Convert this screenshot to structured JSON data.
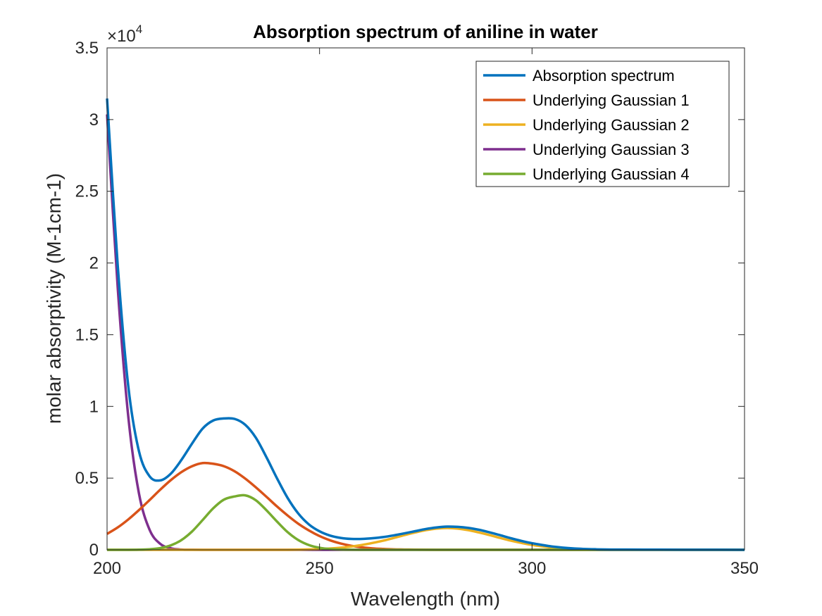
{
  "chart_data": {
    "type": "line",
    "title": "Absorption spectrum of aniline in water",
    "xlabel": "Wavelength (nm)",
    "ylabel": "molar absorptivity (M-1cm-1)",
    "xlim": [
      200,
      350
    ],
    "ylim": [
      0,
      35000
    ],
    "y_exponent_label": "×10",
    "y_exponent_power": "4",
    "x_ticks": [
      200,
      250,
      300,
      350
    ],
    "x_tick_labels": [
      "200",
      "250",
      "300",
      "350"
    ],
    "y_ticks": [
      0,
      5000,
      10000,
      15000,
      20000,
      25000,
      30000,
      35000
    ],
    "y_tick_labels": [
      "0",
      "0.5",
      "1",
      "1.5",
      "2",
      "2.5",
      "3",
      "3.5"
    ],
    "grid": false,
    "legend_position": "top-right",
    "x": [
      200,
      202.5,
      205,
      207.5,
      210,
      212.5,
      215,
      217.5,
      220,
      222.5,
      225,
      227.5,
      230,
      232.5,
      235,
      237.5,
      240,
      242.5,
      245,
      247.5,
      250,
      252.5,
      255,
      257.5,
      260,
      262.5,
      265,
      267.5,
      270,
      272.5,
      275,
      277.5,
      280,
      282.5,
      285,
      287.5,
      290,
      292.5,
      295,
      297.5,
      300,
      305,
      310,
      315,
      320,
      330,
      340,
      350
    ],
    "series": [
      {
        "name": "Absorption spectrum",
        "color": "#0072BD",
        "values": [
          31470,
          19870,
          11390,
          6880,
          5130,
          4840,
          5310,
          6270,
          7410,
          8460,
          9020,
          9160,
          9130,
          8720,
          7820,
          6460,
          4980,
          3610,
          2530,
          1770,
          1290,
          990,
          830,
          760,
          760,
          810,
          890,
          1010,
          1150,
          1300,
          1450,
          1560,
          1620,
          1600,
          1530,
          1400,
          1220,
          1020,
          810,
          620,
          460,
          220,
          95,
          40,
          20,
          10,
          5,
          3
        ]
      },
      {
        "name": "Underlying Gaussian 1",
        "color": "#D95319",
        "values": [
          1110,
          1560,
          2120,
          2770,
          3470,
          4190,
          4860,
          5420,
          5830,
          6050,
          6000,
          5830,
          5480,
          4970,
          4360,
          3700,
          3020,
          2390,
          1820,
          1350,
          960,
          660,
          440,
          280,
          170,
          100,
          60,
          30,
          20,
          10,
          5,
          3,
          0,
          0,
          0,
          0,
          0,
          0,
          0,
          0,
          0,
          0,
          0,
          0,
          0,
          0,
          0,
          0
        ]
      },
      {
        "name": "Underlying Gaussian 2",
        "color": "#EDB120",
        "values": [
          0,
          0,
          0,
          0,
          0,
          0,
          0,
          0,
          0,
          0,
          0,
          0,
          0,
          0,
          0,
          0,
          0,
          0,
          10,
          30,
          50,
          90,
          150,
          230,
          340,
          480,
          640,
          830,
          1030,
          1210,
          1370,
          1480,
          1520,
          1480,
          1370,
          1210,
          1030,
          830,
          640,
          480,
          340,
          150,
          50,
          15,
          5,
          0,
          0,
          0
        ]
      },
      {
        "name": "Underlying Gaussian 3",
        "color": "#7E2F8E",
        "values": [
          30360,
          18310,
          9270,
          3940,
          1400,
          420,
          110,
          20,
          5,
          0,
          0,
          0,
          0,
          0,
          0,
          0,
          0,
          0,
          0,
          0,
          0,
          0,
          0,
          0,
          0,
          0,
          0,
          0,
          0,
          0,
          0,
          0,
          0,
          0,
          0,
          0,
          0,
          0,
          0,
          0,
          0,
          0,
          0,
          0,
          0,
          0,
          0,
          0
        ]
      },
      {
        "name": "Underlying Gaussian 4",
        "color": "#77AC30",
        "values": [
          0,
          0,
          0,
          10,
          40,
          120,
          310,
          680,
          1280,
          2080,
          2900,
          3500,
          3720,
          3800,
          3460,
          2760,
          1970,
          1230,
          680,
          330,
          140,
          50,
          20,
          5,
          0,
          0,
          0,
          0,
          0,
          0,
          0,
          0,
          0,
          0,
          0,
          0,
          0,
          0,
          0,
          0,
          0,
          0,
          0,
          0,
          0,
          0,
          0,
          0
        ]
      }
    ]
  }
}
